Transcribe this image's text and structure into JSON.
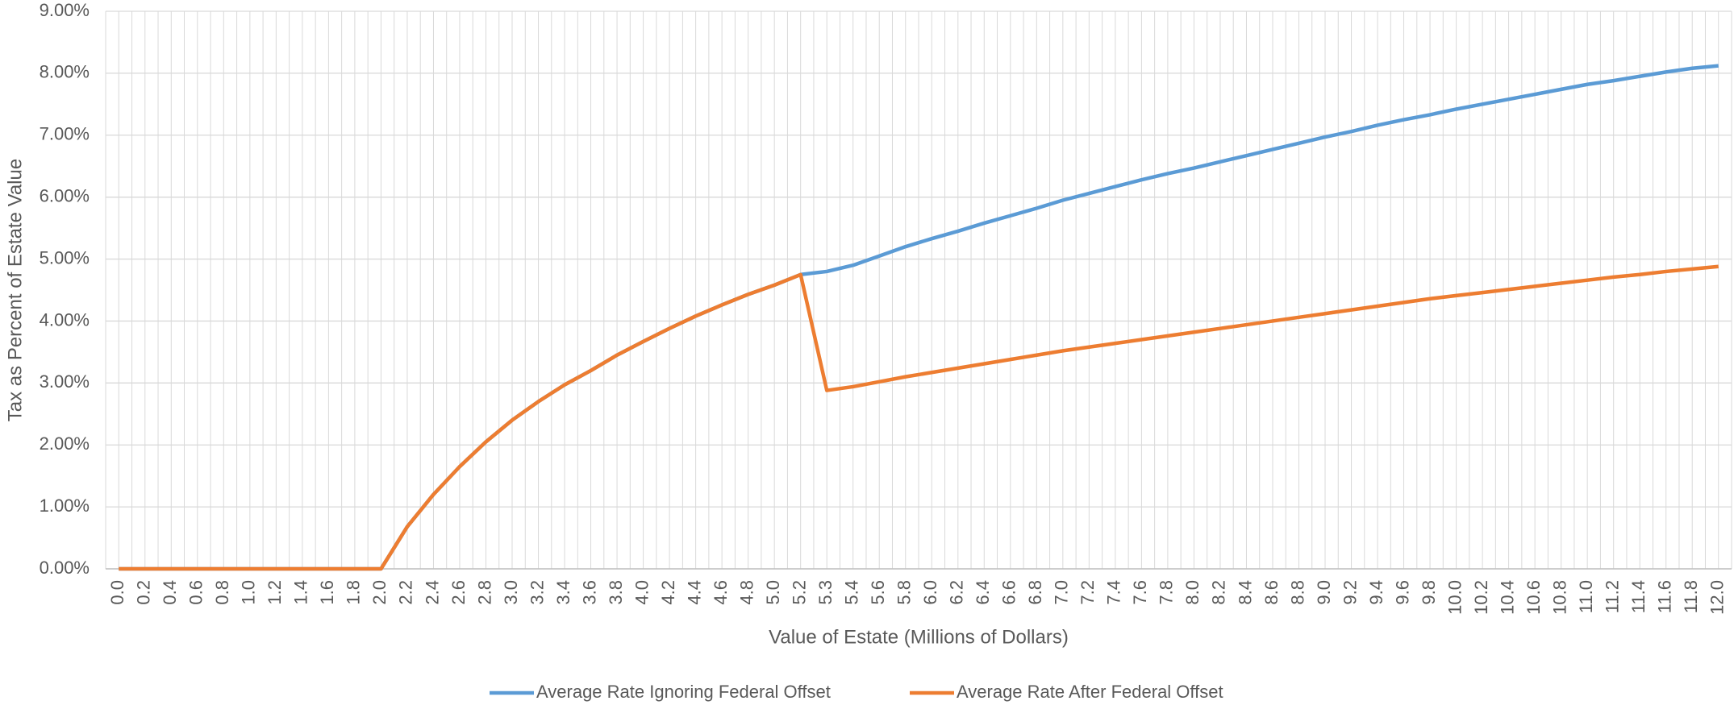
{
  "chart_data": {
    "type": "line",
    "x_label": "Value of Estate (Millions of Dollars)",
    "y_label": "Tax as Percent of Estate Value",
    "categories": [
      "0.0",
      "0.2",
      "0.4",
      "0.6",
      "0.8",
      "1.0",
      "1.2",
      "1.4",
      "1.6",
      "1.8",
      "2.0",
      "2.2",
      "2.4",
      "2.6",
      "2.8",
      "3.0",
      "3.2",
      "3.4",
      "3.6",
      "3.8",
      "4.0",
      "4.2",
      "4.4",
      "4.6",
      "4.8",
      "5.0",
      "5.2",
      "5.3",
      "5.4",
      "5.6",
      "5.8",
      "6.0",
      "6.2",
      "6.4",
      "6.6",
      "6.8",
      "7.0",
      "7.2",
      "7.4",
      "7.6",
      "7.8",
      "8.0",
      "8.2",
      "8.4",
      "8.6",
      "8.8",
      "9.0",
      "9.2",
      "9.4",
      "9.6",
      "9.8",
      "10.0",
      "10.2",
      "10.4",
      "10.6",
      "10.8",
      "11.0",
      "11.2",
      "11.4",
      "11.6",
      "11.8",
      "12.0"
    ],
    "series": [
      {
        "name": "Average Rate Ignoring Federal Offset",
        "color": "#5b9bd5",
        "values": [
          0,
          0,
          0,
          0,
          0,
          0,
          0,
          0,
          0,
          0,
          0,
          0.68,
          1.2,
          1.65,
          2.05,
          2.4,
          2.7,
          2.97,
          3.2,
          3.45,
          3.67,
          3.88,
          4.08,
          4.26,
          4.43,
          4.58,
          4.75,
          4.8,
          4.9,
          5.05,
          5.2,
          5.33,
          5.45,
          5.58,
          5.7,
          5.82,
          5.95,
          6.06,
          6.17,
          6.28,
          6.38,
          6.47,
          6.57,
          6.67,
          6.77,
          6.87,
          6.97,
          7.06,
          7.16,
          7.25,
          7.33,
          7.42,
          7.5,
          7.58,
          7.66,
          7.74,
          7.82,
          7.88,
          7.95,
          8.02,
          8.08,
          8.12
        ]
      },
      {
        "name": "Average Rate After Federal Offset",
        "color": "#ed7d31",
        "values": [
          0,
          0,
          0,
          0,
          0,
          0,
          0,
          0,
          0,
          0,
          0,
          0.68,
          1.2,
          1.65,
          2.05,
          2.4,
          2.7,
          2.97,
          3.2,
          3.45,
          3.67,
          3.88,
          4.08,
          4.26,
          4.43,
          4.58,
          4.75,
          2.88,
          2.94,
          3.02,
          3.1,
          3.17,
          3.24,
          3.31,
          3.38,
          3.45,
          3.52,
          3.58,
          3.64,
          3.7,
          3.76,
          3.82,
          3.88,
          3.94,
          4.0,
          4.06,
          4.12,
          4.18,
          4.24,
          4.3,
          4.36,
          4.41,
          4.46,
          4.51,
          4.56,
          4.61,
          4.66,
          4.71,
          4.75,
          4.8,
          4.84,
          4.88
        ]
      }
    ],
    "ylim": [
      0,
      9
    ],
    "yticks": [
      {
        "value": 0,
        "label": "0.00%"
      },
      {
        "value": 1,
        "label": "1.00%"
      },
      {
        "value": 2,
        "label": "2.00%"
      },
      {
        "value": 3,
        "label": "3.00%"
      },
      {
        "value": 4,
        "label": "4.00%"
      },
      {
        "value": 5,
        "label": "5.00%"
      },
      {
        "value": 6,
        "label": "6.00%"
      },
      {
        "value": 7,
        "label": "7.00%"
      },
      {
        "value": 8,
        "label": "8.00%"
      },
      {
        "value": 9,
        "label": "9.00%"
      }
    ],
    "grid": true,
    "legend": "bottom"
  }
}
